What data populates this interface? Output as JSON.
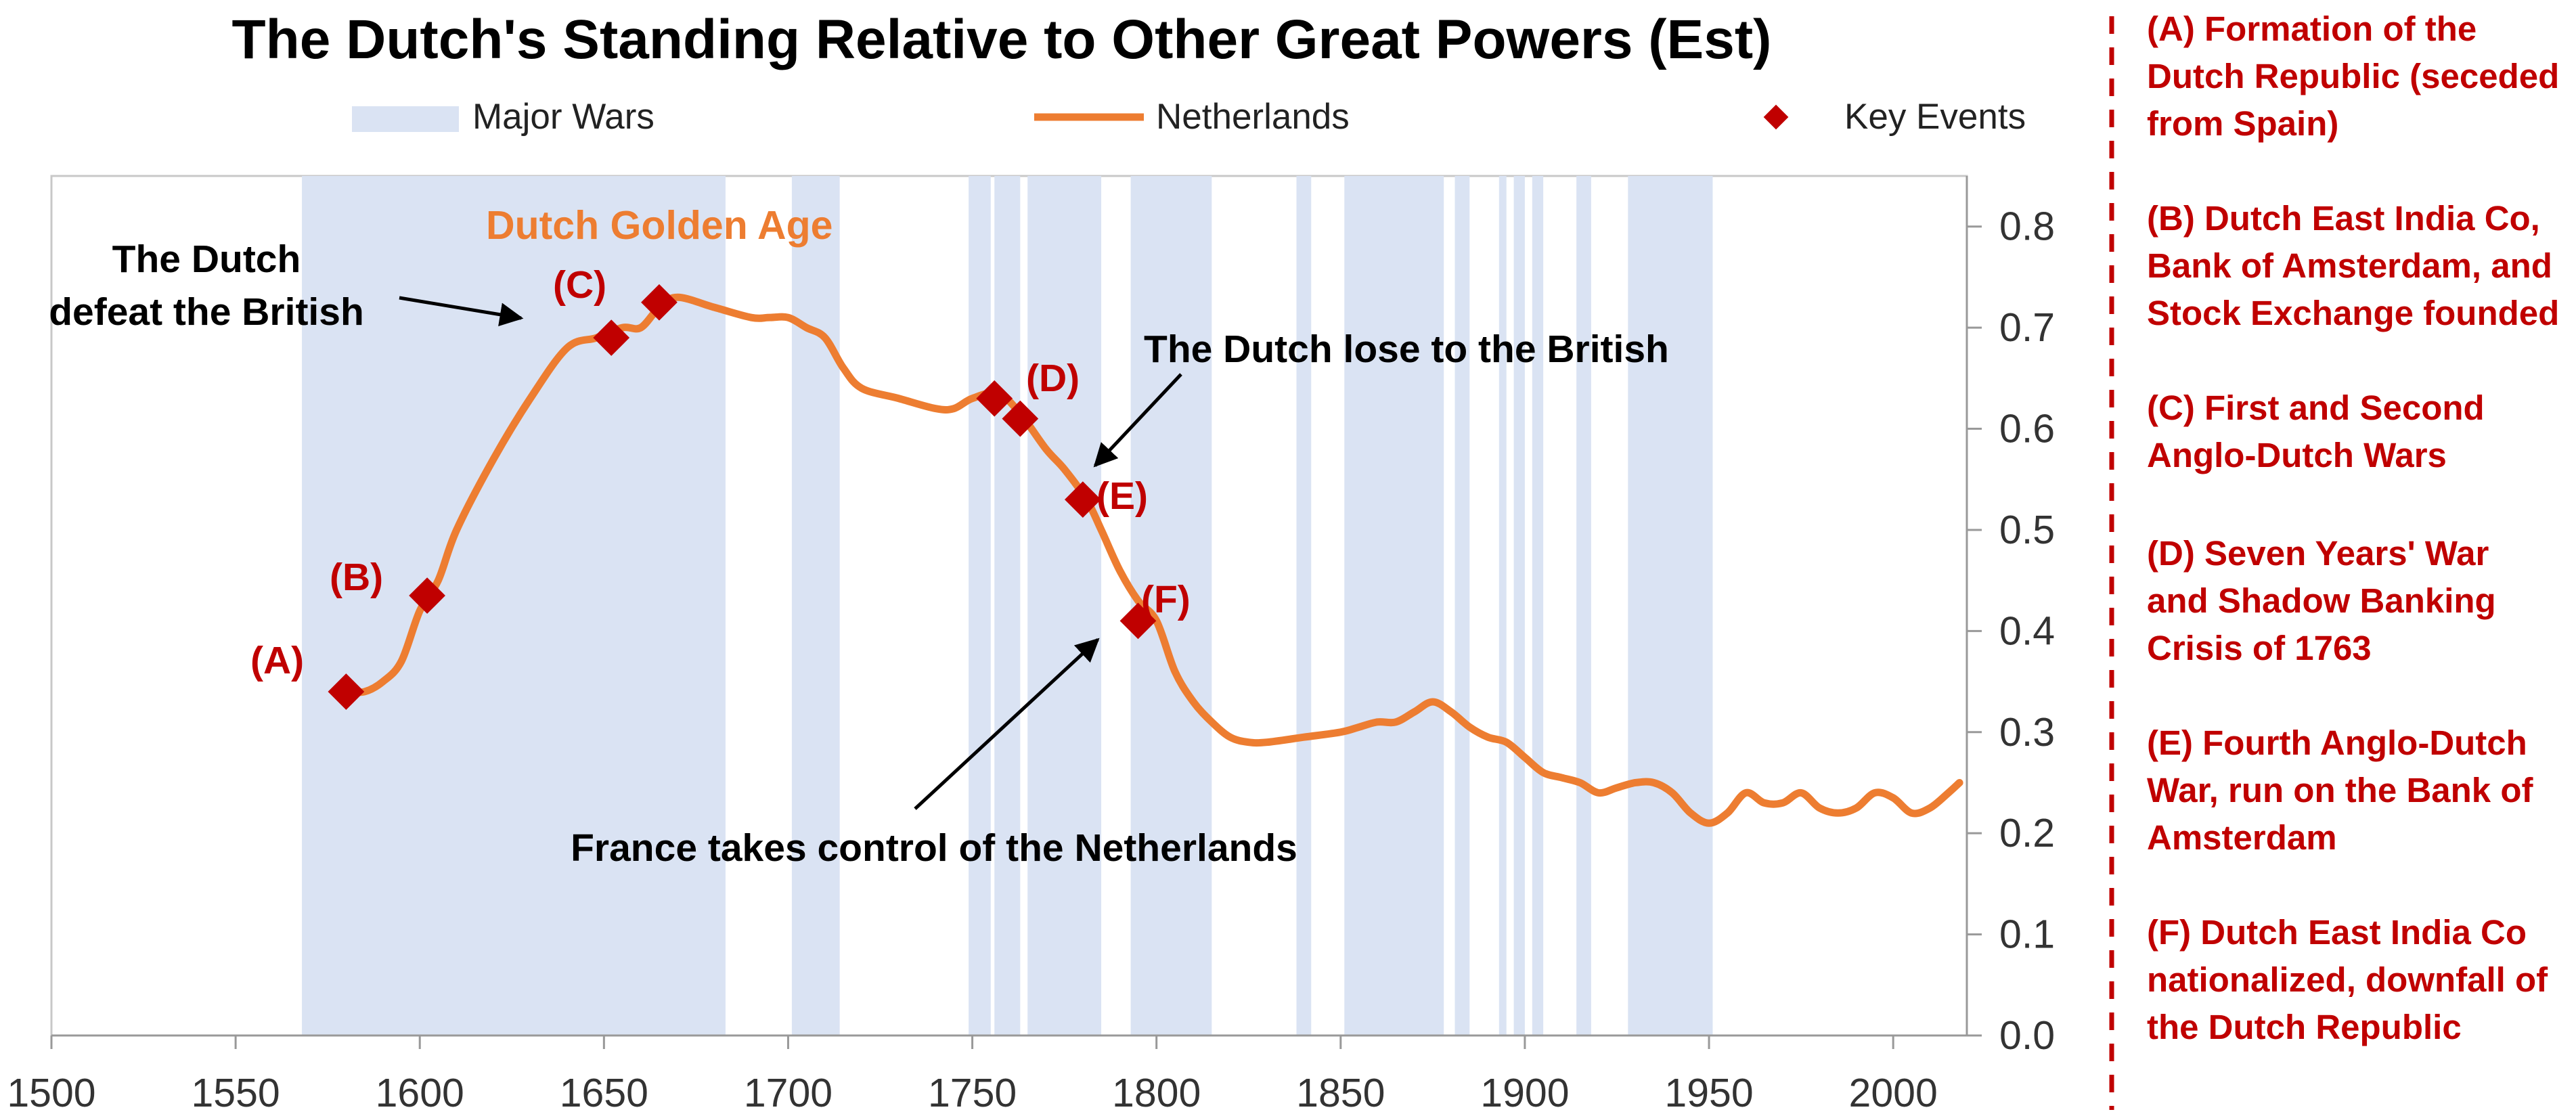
{
  "chart_data": {
    "type": "line",
    "title": "The Dutch's Standing Relative to Other Great Powers (Est)",
    "legend": {
      "position": "top",
      "items": [
        "Major Wars",
        "Netherlands",
        "Key Events"
      ]
    },
    "xlim": [
      1500,
      2020
    ],
    "ylim": [
      0,
      0.85
    ],
    "y_axis_side": "right",
    "grid": false,
    "x_ticks": [
      "1500",
      "1550",
      "1600",
      "1650",
      "1700",
      "1750",
      "1800",
      "1850",
      "1900",
      "1950",
      "2000"
    ],
    "y_ticks": [
      "0.0",
      "0.1",
      "0.2",
      "0.3",
      "0.4",
      "0.5",
      "0.6",
      "0.7",
      "0.8"
    ],
    "major_wars": [
      [
        1568,
        1683
      ],
      [
        1701,
        1714
      ],
      [
        1749,
        1755
      ],
      [
        1756,
        1763
      ],
      [
        1765,
        1785
      ],
      [
        1793,
        1815
      ],
      [
        1838,
        1842
      ],
      [
        1851,
        1878
      ],
      [
        1881,
        1885
      ],
      [
        1893,
        1895
      ],
      [
        1897,
        1900
      ],
      [
        1902,
        1905
      ],
      [
        1914,
        1918
      ],
      [
        1928,
        1951
      ]
    ],
    "series": [
      {
        "name": "Netherlands",
        "color": "#ed7d31",
        "x": [
          1580,
          1585,
          1590,
          1595,
          1600,
          1605,
          1610,
          1620,
          1630,
          1640,
          1648,
          1655,
          1660,
          1665,
          1670,
          1680,
          1690,
          1695,
          1700,
          1705,
          1710,
          1715,
          1720,
          1730,
          1740,
          1745,
          1750,
          1757,
          1763,
          1770,
          1775,
          1781,
          1785,
          1790,
          1795,
          1800,
          1805,
          1810,
          1815,
          1820,
          1825,
          1830,
          1840,
          1850,
          1855,
          1860,
          1865,
          1870,
          1875,
          1880,
          1885,
          1890,
          1895,
          1900,
          1905,
          1910,
          1915,
          1920,
          1925,
          1930,
          1935,
          1940,
          1945,
          1950,
          1955,
          1960,
          1965,
          1970,
          1975,
          1980,
          1985,
          1990,
          1995,
          2000,
          2005,
          2010,
          2015,
          2018
        ],
        "y": [
          0.34,
          0.34,
          0.35,
          0.37,
          0.42,
          0.45,
          0.5,
          0.57,
          0.63,
          0.68,
          0.69,
          0.7,
          0.7,
          0.72,
          0.73,
          0.72,
          0.71,
          0.71,
          0.71,
          0.7,
          0.69,
          0.66,
          0.64,
          0.63,
          0.62,
          0.62,
          0.63,
          0.635,
          0.615,
          0.58,
          0.56,
          0.53,
          0.5,
          0.46,
          0.43,
          0.41,
          0.36,
          0.33,
          0.31,
          0.295,
          0.29,
          0.29,
          0.295,
          0.3,
          0.305,
          0.31,
          0.31,
          0.32,
          0.33,
          0.32,
          0.305,
          0.295,
          0.29,
          0.275,
          0.26,
          0.255,
          0.25,
          0.24,
          0.245,
          0.25,
          0.25,
          0.24,
          0.22,
          0.21,
          0.22,
          0.24,
          0.23,
          0.23,
          0.24,
          0.225,
          0.22,
          0.225,
          0.24,
          0.235,
          0.22,
          0.225,
          0.24,
          0.25
        ]
      }
    ],
    "key_events": [
      {
        "label": "(A)",
        "x": 1580,
        "y": 0.34
      },
      {
        "label": "(B)",
        "x": 1602,
        "y": 0.435
      },
      {
        "label": "(C)",
        "x": 1652,
        "y": 0.69
      },
      {
        "label": "(C)",
        "x": 1665,
        "y": 0.725
      },
      {
        "label": "(D)",
        "x": 1756,
        "y": 0.63
      },
      {
        "label": "(D)",
        "x": 1763,
        "y": 0.61
      },
      {
        "label": "(E)",
        "x": 1780,
        "y": 0.53
      },
      {
        "label": "(F)",
        "x": 1795,
        "y": 0.41
      }
    ],
    "event_labels": [
      "(A)",
      "(B)",
      "(C)",
      "(D)",
      "(E)",
      "(F)"
    ],
    "annotations": {
      "golden_age": "Dutch Golden Age",
      "defeat_british_line1": "The Dutch",
      "defeat_british_line2": "defeat the British",
      "lose_british": "The Dutch lose to the British",
      "france_control": "France takes control of the Netherlands"
    },
    "colors": {
      "war_band": "#dae3f3",
      "line": "#ed7d31",
      "event": "#c00000",
      "axis": "#999999"
    }
  },
  "side_panel": {
    "entries": [
      [
        "(A) Formation of the",
        "Dutch Republic (seceded",
        "from Spain)"
      ],
      [
        "(B) Dutch East India Co,",
        "Bank of Amsterdam, and",
        "Stock Exchange founded"
      ],
      [
        "(C) First and Second",
        "Anglo-Dutch Wars"
      ],
      [
        "(D) Seven Years' War",
        "and Shadow Banking",
        "Crisis of 1763"
      ],
      [
        "(E) Fourth Anglo-Dutch",
        "War, run on the Bank of",
        "Amsterdam"
      ],
      [
        "(F) Dutch East India Co",
        "nationalized, downfall of",
        "the Dutch Republic"
      ]
    ]
  }
}
